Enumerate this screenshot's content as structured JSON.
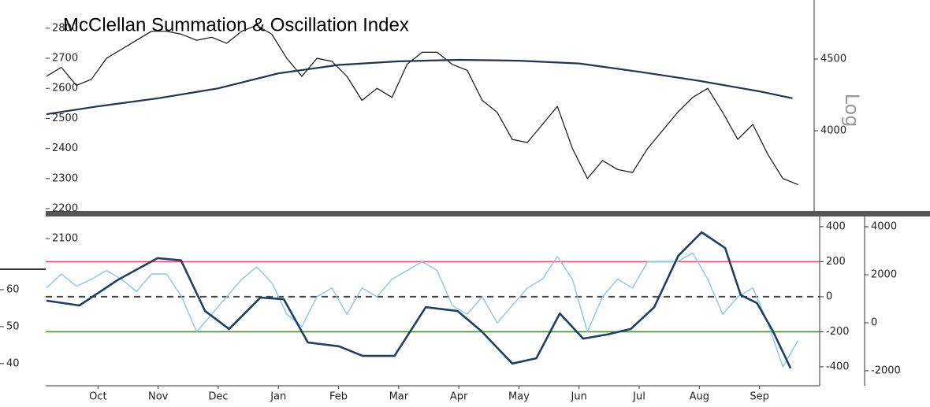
{
  "chart_data": [
    {
      "type": "line",
      "title": "McClellan Summation & Oscillation Index",
      "y2label": "Log",
      "xlim": [
        0.13,
        12.91
      ],
      "ylim": [
        2192,
        2894
      ],
      "yticks": [
        2100,
        2200,
        2300,
        2400,
        2500,
        2600,
        2700,
        2800
      ],
      "y2lim": [
        3505,
        4959
      ],
      "y2ticks": [
        4000,
        4500
      ],
      "y2log": true,
      "series": [
        {
          "color": "#111111",
          "width": 1.2,
          "x": [
            0.14,
            0.39,
            0.64,
            0.89,
            1.14,
            1.39,
            1.64,
            1.89,
            2.14,
            2.39,
            2.64,
            2.89,
            3.14,
            3.39,
            3.64,
            3.89,
            4.14,
            4.39,
            4.64,
            4.89,
            5.14,
            5.39,
            5.64,
            5.89,
            6.14,
            6.39,
            6.64,
            6.89,
            7.14,
            7.39,
            7.64,
            7.89,
            8.14,
            8.39,
            8.64,
            8.89,
            9.14,
            9.39,
            9.64,
            9.89,
            10.14,
            10.39,
            10.64,
            10.89,
            11.14,
            11.39,
            11.64,
            11.89,
            12.14,
            12.39,
            12.64
          ],
          "values": [
            2640,
            2670,
            2610,
            2630,
            2700,
            2730,
            2760,
            2790,
            2790,
            2780,
            2760,
            2770,
            2750,
            2790,
            2810,
            2780,
            2700,
            2640,
            2700,
            2690,
            2640,
            2560,
            2600,
            2570,
            2680,
            2720,
            2720,
            2680,
            2660,
            2560,
            2520,
            2430,
            2420,
            2480,
            2540,
            2400,
            2300,
            2360,
            2330,
            2320,
            2400,
            2460,
            2520,
            2570,
            2600,
            2520,
            2430,
            2480,
            2380,
            2300,
            2280
          ]
        },
        {
          "color": "#1f3550",
          "width": 2.2,
          "x": [
            0.14,
            1,
            2,
            3,
            4,
            5,
            6,
            7,
            8,
            9,
            10,
            11,
            12,
            12.55
          ],
          "values": [
            2514,
            2540,
            2567,
            2600,
            2650,
            2678,
            2690,
            2695,
            2692,
            2683,
            2655,
            2625,
            2590,
            2567
          ]
        }
      ]
    },
    {
      "type": "line",
      "xlim": [
        0.13,
        12.91
      ],
      "xticks": [
        {
          "value": 1,
          "label": "Oct"
        },
        {
          "value": 2,
          "label": "Nov"
        },
        {
          "value": 3,
          "label": "Dec"
        },
        {
          "value": 4,
          "label": "Jan"
        },
        {
          "value": 5,
          "label": "Feb"
        },
        {
          "value": 6,
          "label": "Mar"
        },
        {
          "value": 7,
          "label": "Apr"
        },
        {
          "value": 8,
          "label": "May"
        },
        {
          "value": 9,
          "label": "Jun"
        },
        {
          "value": 10,
          "label": "Jul"
        },
        {
          "value": 11,
          "label": "Aug"
        },
        {
          "value": 12,
          "label": "Sep"
        }
      ],
      "ylim": [
        -508,
        458
      ],
      "yticks": [
        -400,
        -200,
        0,
        200,
        400
      ],
      "y3lim": [
        -2623,
        4426
      ],
      "y3ticks": [
        -2000,
        0,
        2000,
        4000
      ],
      "y4lim": [
        34,
        79.8
      ],
      "y4ticks": [
        40,
        50,
        60
      ],
      "hlines": [
        {
          "value": 200,
          "color": "#e0506a"
        },
        {
          "value": 0,
          "color": "#444444",
          "dash": true
        },
        {
          "value": -200,
          "color": "#4f8f10"
        }
      ],
      "series": [
        {
          "color": "#8cc4f0",
          "width": 1.4,
          "axis": "y",
          "x": [
            0.14,
            0.39,
            0.64,
            0.89,
            1.14,
            1.39,
            1.64,
            1.89,
            2.14,
            2.39,
            2.64,
            2.89,
            3.14,
            3.39,
            3.64,
            3.89,
            4.14,
            4.39,
            4.64,
            4.89,
            5.14,
            5.39,
            5.64,
            5.89,
            6.14,
            6.39,
            6.64,
            6.89,
            7.14,
            7.39,
            7.64,
            7.89,
            8.14,
            8.39,
            8.64,
            8.89,
            9.14,
            9.39,
            9.64,
            9.89,
            10.14,
            10.39,
            10.64,
            10.89,
            11.14,
            11.39,
            11.64,
            11.89,
            12.14,
            12.39,
            12.64
          ],
          "values": [
            50,
            130,
            60,
            100,
            150,
            100,
            30,
            130,
            130,
            0,
            -200,
            -100,
            0,
            100,
            170,
            80,
            -100,
            -170,
            0,
            50,
            -100,
            50,
            0,
            100,
            150,
            200,
            150,
            -50,
            -100,
            0,
            -150,
            -50,
            50,
            100,
            230,
            100,
            -200,
            0,
            100,
            50,
            200,
            200,
            200,
            250,
            100,
            -100,
            0,
            50,
            -150,
            -400,
            -250
          ]
        },
        {
          "color": "#1f3f63",
          "width": 2.6,
          "axis": "y3",
          "x": [
            0.14,
            0.69,
            1.34,
            1.99,
            2.38,
            2.78,
            3.18,
            3.7,
            4.09,
            4.49,
            5.01,
            5.4,
            5.93,
            6.45,
            6.98,
            7.37,
            7.89,
            8.29,
            8.68,
            9.07,
            9.47,
            9.86,
            10.25,
            10.65,
            11.04,
            11.43,
            11.69,
            11.96,
            12.22,
            12.52
          ],
          "values": [
            920,
            720,
            1800,
            2690,
            2600,
            490,
            -260,
            1050,
            980,
            -820,
            -980,
            -1380,
            -1380,
            650,
            490,
            -330,
            -1700,
            -1480,
            390,
            -660,
            -490,
            -260,
            650,
            2790,
            3770,
            3110,
            1150,
            820,
            -330,
            -1900
          ]
        }
      ]
    }
  ]
}
